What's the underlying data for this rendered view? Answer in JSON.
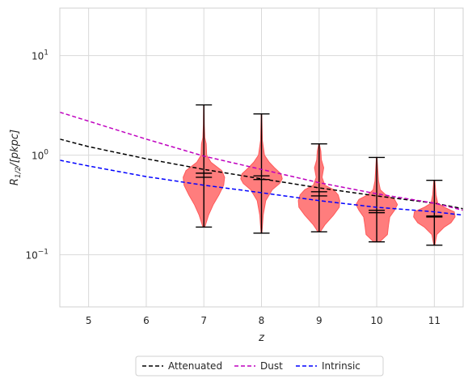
{
  "chart_data": {
    "type": "violin",
    "x_label": "z",
    "y_label": "R_{1/2}/[pkpc]",
    "y_scale": "log",
    "xlim": [
      4.5,
      11.5
    ],
    "ylim": [
      0.03,
      30
    ],
    "grid": true,
    "x_ticks": [
      {
        "value": 5,
        "label": "5"
      },
      {
        "value": 6,
        "label": "6"
      },
      {
        "value": 7,
        "label": "7"
      },
      {
        "value": 8,
        "label": "8"
      },
      {
        "value": 9,
        "label": "9"
      },
      {
        "value": 10,
        "label": "10"
      },
      {
        "value": 11,
        "label": "11"
      }
    ],
    "y_ticks": [
      {
        "value": 0.1,
        "base": "10",
        "exp": "−1"
      },
      {
        "value": 1,
        "base": "10",
        "exp": "0"
      },
      {
        "value": 10,
        "base": "10",
        "exp": "1"
      }
    ],
    "lines": [
      {
        "name": "Attenuated",
        "color": "#000000",
        "x": [
          4.5,
          5,
          6,
          7,
          8,
          9,
          10,
          11,
          11.5
        ],
        "y": [
          1.45,
          1.22,
          0.92,
          0.72,
          0.58,
          0.47,
          0.39,
          0.33,
          0.29
        ]
      },
      {
        "name": "Dust",
        "color": "#bf00bf",
        "x": [
          4.5,
          5,
          6,
          7,
          8,
          9,
          10,
          11,
          11.5
        ],
        "y": [
          2.7,
          2.2,
          1.45,
          0.98,
          0.72,
          0.53,
          0.41,
          0.33,
          0.28
        ]
      },
      {
        "name": "Intrinsic",
        "color": "#0000ff",
        "x": [
          4.5,
          5,
          6,
          7,
          8,
          9,
          10,
          11,
          11.5
        ],
        "y": [
          0.89,
          0.78,
          0.61,
          0.5,
          0.42,
          0.35,
          0.3,
          0.27,
          0.25
        ]
      }
    ],
    "violins": [
      {
        "z": 7,
        "min": 0.19,
        "max": 3.2,
        "mean": 0.66,
        "median": 0.6,
        "density": [
          [
            0.19,
            0.02
          ],
          [
            0.25,
            0.1
          ],
          [
            0.32,
            0.2
          ],
          [
            0.4,
            0.32
          ],
          [
            0.5,
            0.42
          ],
          [
            0.6,
            0.44
          ],
          [
            0.7,
            0.38
          ],
          [
            0.85,
            0.15
          ],
          [
            1.0,
            0.06
          ],
          [
            1.3,
            0.05
          ],
          [
            1.5,
            0.02
          ],
          [
            2.0,
            0.01
          ],
          [
            3.2,
            0.005
          ]
        ]
      },
      {
        "z": 8,
        "min": 0.165,
        "max": 2.6,
        "mean": 0.62,
        "median": 0.57,
        "density": [
          [
            0.165,
            0.01
          ],
          [
            0.25,
            0.04
          ],
          [
            0.35,
            0.1
          ],
          [
            0.45,
            0.25
          ],
          [
            0.52,
            0.42
          ],
          [
            0.58,
            0.48
          ],
          [
            0.65,
            0.45
          ],
          [
            0.75,
            0.3
          ],
          [
            0.85,
            0.18
          ],
          [
            1.0,
            0.07
          ],
          [
            1.4,
            0.02
          ],
          [
            2.6,
            0.005
          ]
        ]
      },
      {
        "z": 9,
        "min": 0.17,
        "max": 1.3,
        "mean": 0.43,
        "median": 0.39,
        "density": [
          [
            0.17,
            0.02
          ],
          [
            0.2,
            0.1
          ],
          [
            0.25,
            0.25
          ],
          [
            0.3,
            0.35
          ],
          [
            0.35,
            0.36
          ],
          [
            0.4,
            0.33
          ],
          [
            0.45,
            0.25
          ],
          [
            0.5,
            0.1
          ],
          [
            0.6,
            0.05
          ],
          [
            0.75,
            0.08
          ],
          [
            0.9,
            0.04
          ],
          [
            1.1,
            0.03
          ],
          [
            1.3,
            0.005
          ]
        ]
      },
      {
        "z": 10,
        "min": 0.135,
        "max": 0.95,
        "mean": 0.28,
        "median": 0.265,
        "density": [
          [
            0.135,
            0.05
          ],
          [
            0.16,
            0.18
          ],
          [
            0.2,
            0.2
          ],
          [
            0.24,
            0.22
          ],
          [
            0.28,
            0.3
          ],
          [
            0.32,
            0.35
          ],
          [
            0.36,
            0.3
          ],
          [
            0.4,
            0.15
          ],
          [
            0.45,
            0.06
          ],
          [
            0.55,
            0.03
          ],
          [
            0.95,
            0.005
          ]
        ]
      },
      {
        "z": 11,
        "min": 0.125,
        "max": 0.56,
        "mean": 0.245,
        "median": 0.24,
        "density": [
          [
            0.125,
            0.005
          ],
          [
            0.16,
            0.03
          ],
          [
            0.19,
            0.12
          ],
          [
            0.21,
            0.2
          ],
          [
            0.24,
            0.25
          ],
          [
            0.27,
            0.24
          ],
          [
            0.3,
            0.12
          ],
          [
            0.33,
            0.04
          ],
          [
            0.4,
            0.02
          ],
          [
            0.56,
            0.005
          ]
        ]
      }
    ],
    "violin_color": "#ff6f6f",
    "legend": {
      "position": "bottom-center"
    }
  }
}
